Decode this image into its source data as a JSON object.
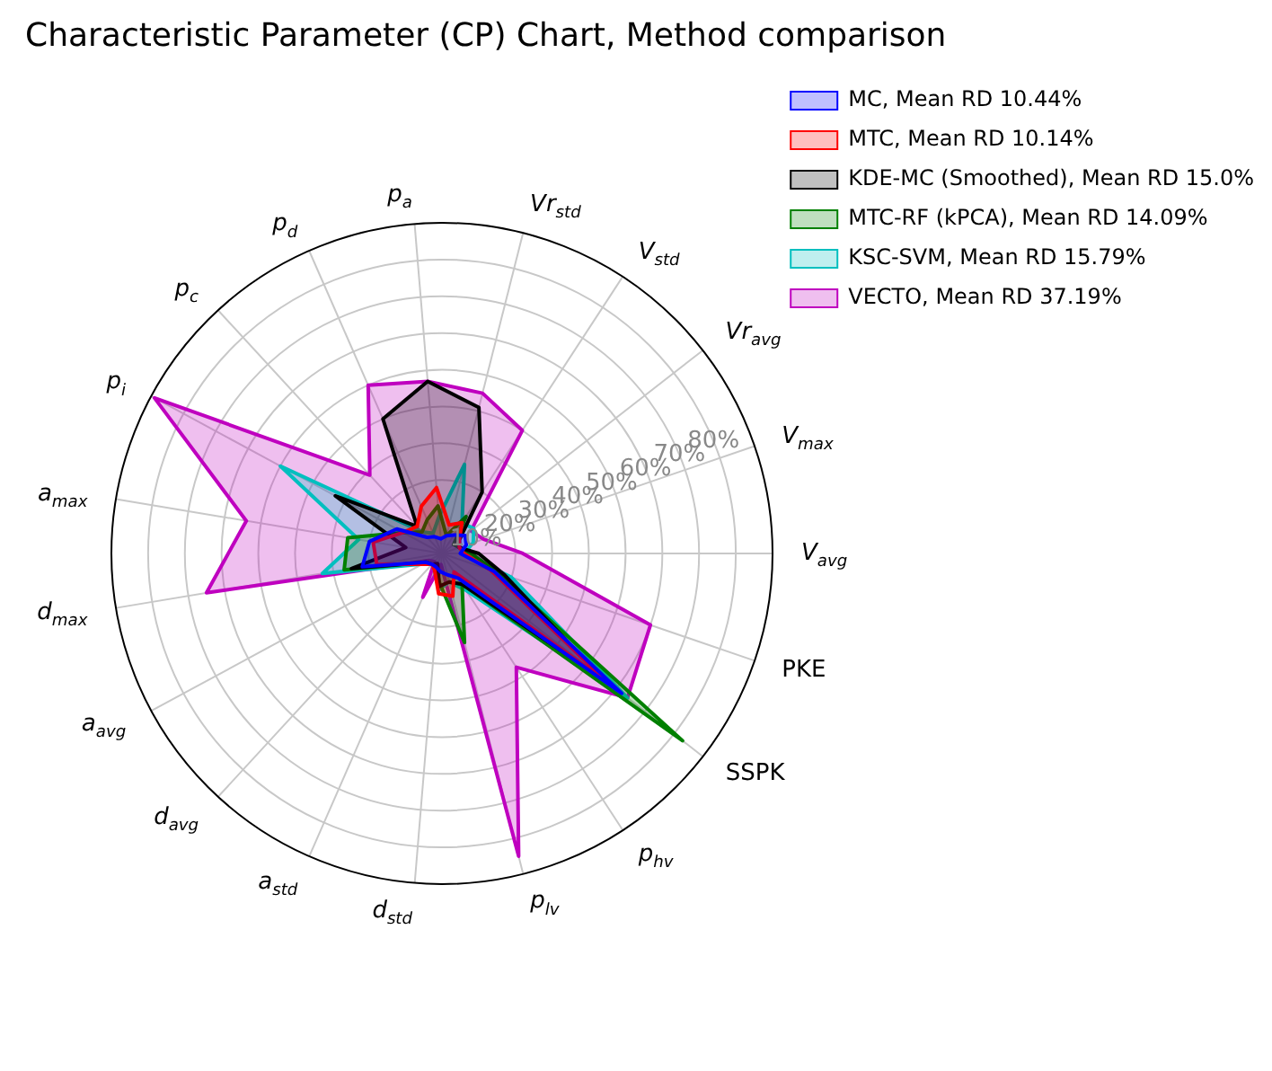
{
  "chart_data": {
    "type": "radar",
    "title": "Characteristic Parameter (CP) Chart, Method comparison",
    "categories": [
      "Vr$_{std}$",
      "V$_{std}$",
      "Vr$_{avg}$",
      "V$_{max}$",
      "V$_{avg}$",
      "PKE",
      "SSPK",
      "p$_{hv}$",
      "p$_{lv}$",
      "d$_{std}$",
      "a$_{std}$",
      "d$_{avg}$",
      "a$_{avg}$",
      "d$_{max}$",
      "a$_{max}$",
      "p$_{i}$",
      "p$_{c}$",
      "p$_{d}$",
      "p$_{a}$"
    ],
    "series": [
      {
        "name": "MC, Mean RD 10.44%",
        "color": "#0000ff",
        "values": [
          5,
          6,
          8,
          7,
          5,
          15,
          62,
          8,
          6,
          5,
          4,
          4,
          5,
          22,
          20,
          14,
          6,
          5,
          4
        ]
      },
      {
        "name": "MTC, Mean RD 10.14%",
        "color": "#ff0000",
        "values": [
          8,
          10,
          6,
          5,
          6,
          14,
          57,
          6,
          12,
          11,
          5,
          4,
          6,
          18,
          19,
          12,
          10,
          14,
          18
        ]
      },
      {
        "name": "KDE-MC (Smoothed), Mean RD 15.0%",
        "color": "#000000",
        "values": [
          41,
          20,
          6,
          5,
          10,
          18,
          55,
          10,
          8,
          9,
          3,
          4,
          5,
          25,
          10,
          33,
          10,
          40,
          47
        ]
      },
      {
        "name": "MTC-RF (kPCA), Mean RD 14.09%",
        "color": "#008000",
        "values": [
          5,
          12,
          4,
          5,
          8,
          16,
          83,
          10,
          25,
          8,
          4,
          4,
          5,
          27,
          26,
          12,
          8,
          10,
          13
        ]
      },
      {
        "name": "KSC-SVM, Mean RD 15.79%",
        "color": "#00bfbf",
        "values": [
          25,
          10,
          11,
          9,
          6,
          20,
          64,
          12,
          8,
          10,
          5,
          4,
          6,
          33,
          23,
          50,
          8,
          6,
          10
        ]
      },
      {
        "name": "VECTO, Mean RD 37.19%",
        "color": "#bf00bf",
        "values": [
          45,
          40,
          10,
          12,
          22,
          60,
          64,
          37,
          85,
          3,
          13,
          3,
          4,
          65,
          54,
          89,
          29,
          50,
          47
        ]
      }
    ],
    "ylim": [
      0,
      90
    ],
    "yticks": [
      {
        "value": 10,
        "label": "10%"
      },
      {
        "value": 20,
        "label": "20%"
      },
      {
        "value": 30,
        "label": "30%"
      },
      {
        "value": 40,
        "label": "40%"
      },
      {
        "value": 50,
        "label": "50%"
      },
      {
        "value": 60,
        "label": "60%"
      },
      {
        "value": 70,
        "label": "70%"
      },
      {
        "value": 80,
        "label": "80%"
      }
    ],
    "grid": true,
    "legend": "top right",
    "marker": "none",
    "line_style": "solid"
  }
}
